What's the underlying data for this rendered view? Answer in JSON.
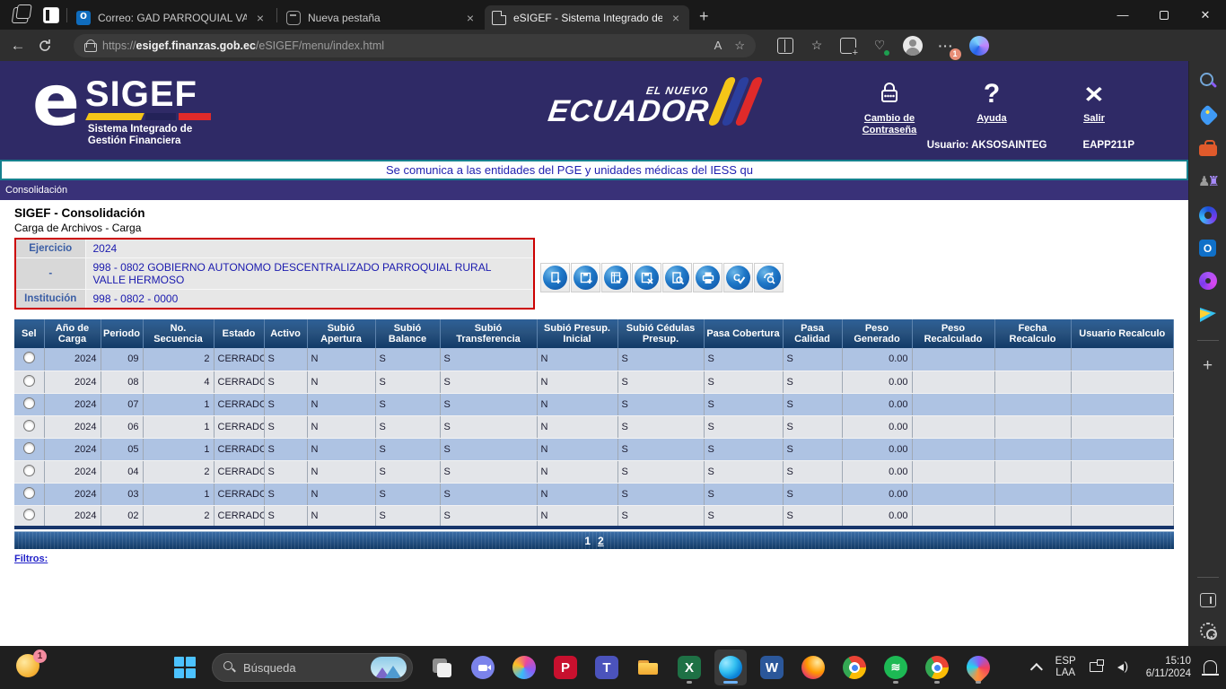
{
  "browser": {
    "tabs": [
      {
        "label": "Correo: GAD PARROQUIAL VALLE",
        "icon": "outlook-favicon"
      },
      {
        "label": "Nueva pestaña",
        "icon": "new-tab-favicon"
      },
      {
        "label": "eSIGEF - Sistema Integrado de G",
        "icon": "page-favicon"
      }
    ],
    "close_glyph": "×",
    "new_tab_glyph": "+",
    "url_scheme": "https://",
    "url_domain": "esigef.finanzas.gob.ec",
    "url_path": "/eSIGEF/menu/index.html",
    "read_aloud_glyph": "A",
    "more_glyph": "···",
    "more_badge": "1",
    "window_min_glyph": "—",
    "window_close_glyph": "✕"
  },
  "app_header": {
    "logo_e": "e",
    "logo_name": "SIGEF",
    "logo_subtitle1": "Sistema Integrado de",
    "logo_subtitle2": "Gestión Financiera",
    "ecuador_top": "EL NUEVO",
    "ecuador_main": "ECUADOR",
    "change_password": "Cambio de Contraseña",
    "help_label": "Ayuda",
    "help_glyph": "?",
    "exit_label": "Salir",
    "exit_glyph": "✕",
    "user": "Usuario: AKSOSAINTEG",
    "terminal": "EAPP211P"
  },
  "marquee_text": "Se comunica a las entidades del PGE y unidades médicas del IESS qu",
  "menu_item": "Consolidación",
  "page": {
    "title": "SIGEF - Consolidación",
    "subtitle": "Carga de Archivos - Carga"
  },
  "filter_form": {
    "rows": [
      {
        "label": "Ejercicio",
        "value": "2024"
      },
      {
        "label": "-",
        "value": "998 - 0802 GOBIERNO AUTONOMO DESCENTRALIZADO PARROQUIAL RURAL VALLE HERMOSO"
      },
      {
        "label": "Institución",
        "value": "998 - 0802 - 0000"
      }
    ]
  },
  "toolbar": {
    "buttons": [
      "new-record-icon",
      "save-record-icon",
      "validate-form-icon",
      "delete-record-icon",
      "consult-record-icon",
      "print-icon",
      "approve-icon",
      "reload-icon"
    ]
  },
  "table": {
    "columns": [
      "Sel",
      "Año de Carga",
      "Periodo",
      "No. Secuencia",
      "Estado",
      "Activo",
      "Subió Apertura",
      "Subió Balance",
      "Subió Transferencia",
      "Subió Presup. Inicial",
      "Subió Cédulas Presup.",
      "Pasa Cobertura",
      "Pasa Calidad",
      "Peso Generado",
      "Peso Recalculado",
      "Fecha Recalculo",
      "Usuario Recalculo"
    ],
    "rows": [
      [
        "2024",
        "09",
        "2",
        "CERRADO",
        "S",
        "N",
        "S",
        "S",
        "N",
        "S",
        "S",
        "S",
        "0.00",
        "",
        "",
        ""
      ],
      [
        "2024",
        "08",
        "4",
        "CERRADO",
        "S",
        "N",
        "S",
        "S",
        "N",
        "S",
        "S",
        "S",
        "0.00",
        "",
        "",
        ""
      ],
      [
        "2024",
        "07",
        "1",
        "CERRADO",
        "S",
        "N",
        "S",
        "S",
        "N",
        "S",
        "S",
        "S",
        "0.00",
        "",
        "",
        ""
      ],
      [
        "2024",
        "06",
        "1",
        "CERRADO",
        "S",
        "N",
        "S",
        "S",
        "N",
        "S",
        "S",
        "S",
        "0.00",
        "",
        "",
        ""
      ],
      [
        "2024",
        "05",
        "1",
        "CERRADO",
        "S",
        "N",
        "S",
        "S",
        "N",
        "S",
        "S",
        "S",
        "0.00",
        "",
        "",
        ""
      ],
      [
        "2024",
        "04",
        "2",
        "CERRADO",
        "S",
        "N",
        "S",
        "S",
        "N",
        "S",
        "S",
        "S",
        "0.00",
        "",
        "",
        ""
      ],
      [
        "2024",
        "03",
        "1",
        "CERRADO",
        "S",
        "N",
        "S",
        "S",
        "N",
        "S",
        "S",
        "S",
        "0.00",
        "",
        "",
        ""
      ],
      [
        "2024",
        "02",
        "2",
        "CERRADO",
        "S",
        "N",
        "S",
        "S",
        "N",
        "S",
        "S",
        "S",
        "0.00",
        "",
        "",
        ""
      ]
    ]
  },
  "pagination": {
    "page1": "1",
    "page2": "2"
  },
  "filters_link": "Filtros:",
  "edge_sidebar_icons": [
    "search-icon",
    "shopping-icon",
    "toolbox-icon",
    "games-icon",
    "m365-icon",
    "outlook-icon",
    "clipchamp-icon",
    "send-icon",
    "add-icon",
    "customize-sidebar-icon",
    "settings-icon"
  ],
  "taskbar": {
    "widget_badge": "1",
    "search_placeholder": "Búsqueda",
    "apps": [
      "task-view",
      "chat",
      "copilot",
      "pdf-reader",
      "teams",
      "file-explorer",
      "excel",
      "edge",
      "word",
      "firefox",
      "chrome",
      "spotify",
      "chrome-work",
      "paint"
    ],
    "language_line1": "ESP",
    "language_line2": "LAA",
    "time": "15:10",
    "date": "6/11/2024"
  },
  "colors": {
    "header_navy": "#2f2a66",
    "menubar_purple": "#393178",
    "marquee_border_teal": "#15808e",
    "form_border_red": "#cc0000",
    "grid_header_blue": "#123a68",
    "row_blue": "#aec3e3",
    "row_gray": "#e3e5e9"
  }
}
